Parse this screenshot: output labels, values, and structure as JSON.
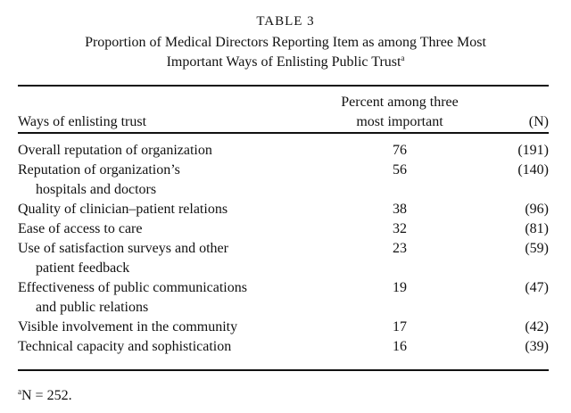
{
  "table_number": "TABLE 3",
  "title_line1": "Proportion of Medical Directors Reporting Item as among Three Most",
  "title_line2": "Important Ways of Enlisting Public Trust",
  "title_footnote_mark": "a",
  "headers": {
    "col1": "Ways of enlisting trust",
    "col2_line1": "Percent among three",
    "col2_line2": "most important",
    "col3": "(N)"
  },
  "rows": [
    {
      "item": "Overall reputation of organization",
      "cont": "",
      "percent": "76",
      "n": "(191)"
    },
    {
      "item": "Reputation of organization’s",
      "cont": "hospitals and doctors",
      "percent": "56",
      "n": "(140)"
    },
    {
      "item": "Quality of clinician–patient relations",
      "cont": "",
      "percent": "38",
      "n": "(96)"
    },
    {
      "item": "Ease of access to care",
      "cont": "",
      "percent": "32",
      "n": "(81)"
    },
    {
      "item": "Use of satisfaction surveys and other",
      "cont": "patient feedback",
      "percent": "23",
      "n": "(59)"
    },
    {
      "item": "Effectiveness of public communications",
      "cont": "and public relations",
      "percent": "19",
      "n": "(47)"
    },
    {
      "item": "Visible involvement in the community",
      "cont": "",
      "percent": "17",
      "n": "(42)"
    },
    {
      "item": "Technical capacity and sophistication",
      "cont": "",
      "percent": "16",
      "n": "(39)"
    }
  ],
  "footnote": {
    "mark": "a",
    "text": "N = 252."
  }
}
